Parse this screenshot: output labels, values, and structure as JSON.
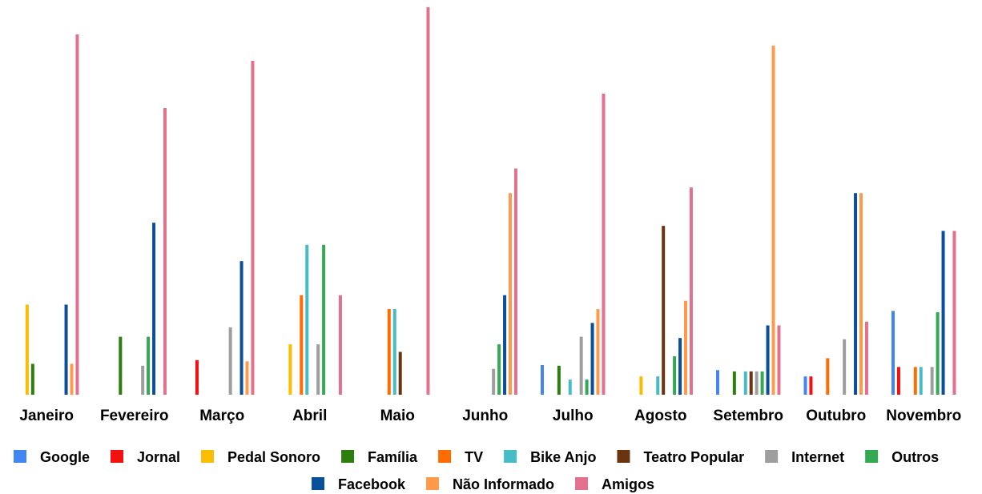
{
  "chart_data": {
    "type": "bar",
    "categories": [
      "Janeiro",
      "Fevereiro",
      "Março",
      "Abril",
      "Maio",
      "Junho",
      "Julho",
      "Agosto",
      "Setembro",
      "Outubro",
      "Novembro"
    ],
    "grid": false,
    "legend_position": "bottom",
    "ylim": [
      0,
      61
    ],
    "series": [
      {
        "name": "Google",
        "color": "#4285F4",
        "values": [
          0,
          0,
          0,
          0,
          0,
          0,
          4.7,
          0,
          3.9,
          2.9,
          13.3
        ]
      },
      {
        "name": "Jornal",
        "color": "#F21010",
        "values": [
          0,
          0,
          5.5,
          0,
          0,
          0,
          0,
          0,
          0,
          2.9,
          4.4
        ]
      },
      {
        "name": "Pedal Sonoro",
        "color": "#FBBC04",
        "values": [
          14.3,
          0,
          0,
          8.0,
          0,
          0,
          0,
          2.9,
          0,
          0,
          0
        ]
      },
      {
        "name": "Família",
        "color": "#2E7D0F",
        "values": [
          4.9,
          9.2,
          0,
          0,
          0,
          0,
          4.6,
          0,
          3.7,
          0,
          0
        ]
      },
      {
        "name": "TV",
        "color": "#FF6D01",
        "values": [
          0,
          0,
          0,
          15.8,
          13.6,
          0,
          0,
          0,
          0,
          5.8,
          4.4
        ]
      },
      {
        "name": "Bike Anjo",
        "color": "#46BDC6",
        "values": [
          0,
          0,
          0,
          23.8,
          13.6,
          0,
          2.4,
          2.9,
          3.7,
          0,
          4.4
        ]
      },
      {
        "name": "Teatro Popular",
        "color": "#6B3410",
        "values": [
          0,
          0,
          0,
          0,
          6.8,
          0,
          0,
          26.8,
          3.7,
          0,
          0
        ]
      },
      {
        "name": "Internet",
        "color": "#9E9E9E",
        "values": [
          0,
          4.6,
          10.7,
          8.0,
          0,
          4.1,
          9.2,
          0,
          3.7,
          8.8,
          4.4
        ]
      },
      {
        "name": "Outros",
        "color": "#34A853",
        "values": [
          0,
          9.2,
          0,
          23.8,
          0,
          8.0,
          2.4,
          6.1,
          3.7,
          0,
          13.1
        ]
      },
      {
        "name": "Facebook",
        "color": "#0B4F9C",
        "values": [
          14.3,
          27.3,
          21.2,
          0,
          0,
          15.8,
          11.4,
          9.0,
          11.0,
          32.0,
          26.0
        ]
      },
      {
        "name": "Não Informado",
        "color": "#FF9A4A",
        "values": [
          4.9,
          0,
          5.3,
          0,
          0,
          32.0,
          13.6,
          14.9,
          55.4,
          32.0,
          0
        ]
      },
      {
        "name": "Amigos",
        "color": "#E3708C",
        "values": [
          57.2,
          45.5,
          53.0,
          15.8,
          61.5,
          35.9,
          47.8,
          32.9,
          11.0,
          11.6,
          26.0
        ]
      }
    ]
  }
}
